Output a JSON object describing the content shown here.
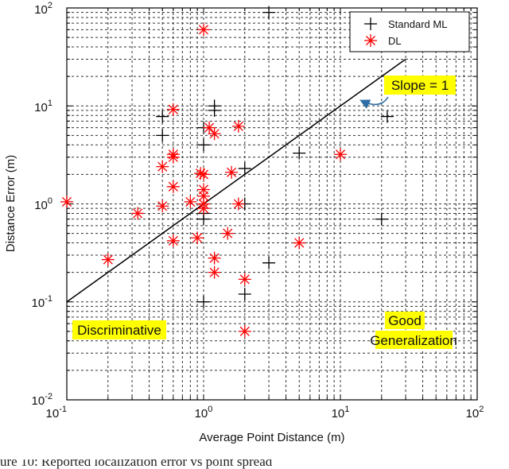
{
  "chart_data": {
    "type": "scatter",
    "xlabel": "Average Point Distance (m)",
    "ylabel": "Distance Error (m)",
    "xscale": "log",
    "yscale": "log",
    "xlim": [
      0.1,
      100
    ],
    "ylim": [
      0.01,
      100
    ],
    "grid": "on",
    "x_ticks": [
      {
        "label": "10",
        "exp": "-1"
      },
      {
        "label": "10",
        "exp": "0"
      },
      {
        "label": "10",
        "exp": "1"
      },
      {
        "label": "10",
        "exp": "2"
      }
    ],
    "y_ticks": [
      {
        "label": "10",
        "exp": "-2"
      },
      {
        "label": "10",
        "exp": "-1"
      },
      {
        "label": "10",
        "exp": "0"
      },
      {
        "label": "10",
        "exp": "1"
      },
      {
        "label": "10",
        "exp": "2"
      }
    ],
    "legend_position": "top-right",
    "series": [
      {
        "name": "Standard ML",
        "marker": "plus",
        "color": "#000000",
        "points": [
          [
            3.0,
            90
          ],
          [
            0.5,
            7.8
          ],
          [
            0.5,
            5.0
          ],
          [
            1.0,
            6.0
          ],
          [
            1.0,
            4.0
          ],
          [
            1.2,
            10.0
          ],
          [
            1.2,
            9.0
          ],
          [
            2.0,
            2.3
          ],
          [
            2.0,
            1.0
          ],
          [
            1.0,
            0.8
          ],
          [
            1.0,
            0.7
          ],
          [
            1.0,
            0.1
          ],
          [
            3.0,
            0.25
          ],
          [
            2.0,
            0.12
          ],
          [
            5.0,
            3.3
          ],
          [
            20.0,
            0.7
          ],
          [
            22.0,
            7.8
          ]
        ]
      },
      {
        "name": "DL",
        "marker": "asterisk",
        "color": "#ff0000",
        "points": [
          [
            1.0,
            60
          ],
          [
            0.6,
            9.2
          ],
          [
            0.5,
            2.4
          ],
          [
            0.6,
            3.0
          ],
          [
            0.6,
            3.2
          ],
          [
            0.6,
            1.5
          ],
          [
            0.5,
            0.95
          ],
          [
            0.33,
            0.8
          ],
          [
            0.2,
            0.27
          ],
          [
            0.1,
            1.05
          ],
          [
            0.6,
            0.42
          ],
          [
            0.9,
            0.45
          ],
          [
            0.8,
            1.05
          ],
          [
            1.0,
            1.0
          ],
          [
            1.0,
            1.2
          ],
          [
            1.0,
            1.4
          ],
          [
            1.0,
            2.0
          ],
          [
            1.1,
            6.0
          ],
          [
            1.2,
            5.2
          ],
          [
            1.0,
            0.9
          ],
          [
            1.2,
            0.28
          ],
          [
            1.2,
            0.2
          ],
          [
            1.5,
            0.5
          ],
          [
            1.6,
            2.1
          ],
          [
            1.8,
            6.2
          ],
          [
            1.8,
            1.0
          ],
          [
            2.0,
            0.17
          ],
          [
            2.0,
            0.05
          ],
          [
            5.0,
            0.4
          ],
          [
            10.0,
            3.2
          ],
          [
            0.95,
            2.05
          ]
        ]
      }
    ],
    "reference_line": {
      "label": "Slope = 1",
      "from": [
        0.1,
        0.1
      ],
      "to": [
        30,
        30
      ]
    },
    "annotations": [
      "Slope = 1",
      "Discriminative",
      "Good",
      "Generalization"
    ]
  },
  "caption_fragment": "ure 10: Reported localization error vs point spread"
}
